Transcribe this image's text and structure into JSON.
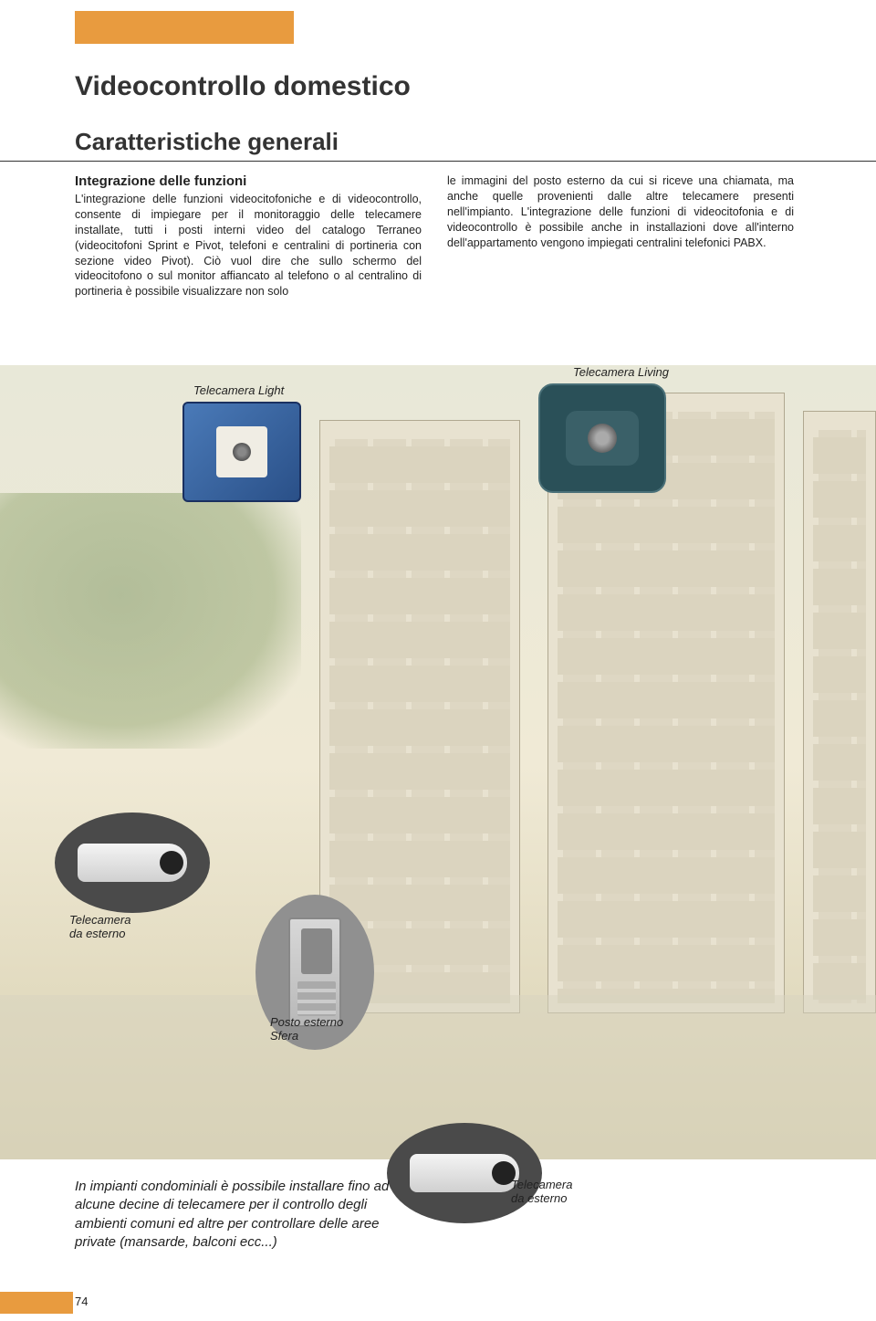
{
  "colors": {
    "accent_orange": "#e89b3f",
    "text": "#222222",
    "light_bg": "#e8e2d0",
    "living_bg": "#2a5058",
    "light_blue": "#4a7ab8"
  },
  "header": {
    "main_title": "Videocontrollo domestico",
    "sub_title": "Caratteristiche generali"
  },
  "section": {
    "label": "Integrazione delle funzioni",
    "left_text": "L'integrazione delle funzioni videocitofoniche e di videocontrollo, consente di impiegare per il monitoraggio delle telecamere installate, tutti i posti interni video del catalogo Terraneo (videocitofoni Sprint e Pivot, telefoni e centralini di portineria con sezione video Pivot). Ciò vuol dire che sullo schermo del videocitofono o sul monitor affiancato al telefono o al centralino di portineria è possibile visualizzare non solo",
    "right_text": "le immagini del posto esterno da cui si riceve una chiamata, ma anche quelle provenienti dalle altre telecamere presenti nell'impianto.\nL'integrazione delle funzioni di videocitofonia e di videocontrollo è possibile anche in installazioni dove all'interno dell'appartamento vengono impiegati centralini telefonici PABX."
  },
  "labels": {
    "telecamera_light": "Telecamera Light",
    "telecamera_living": "Telecamera Living",
    "telecamera_esterno": "Telecamera\nda esterno",
    "posto_esterno": "Posto esterno\nSfera"
  },
  "blurb": "In impianti condominiali è possibile installare fino ad alcune decine di telecamere per il controllo degli ambienti comuni ed altre per controllare delle aree private (mansarde, balconi ecc...)",
  "page_number": "74"
}
